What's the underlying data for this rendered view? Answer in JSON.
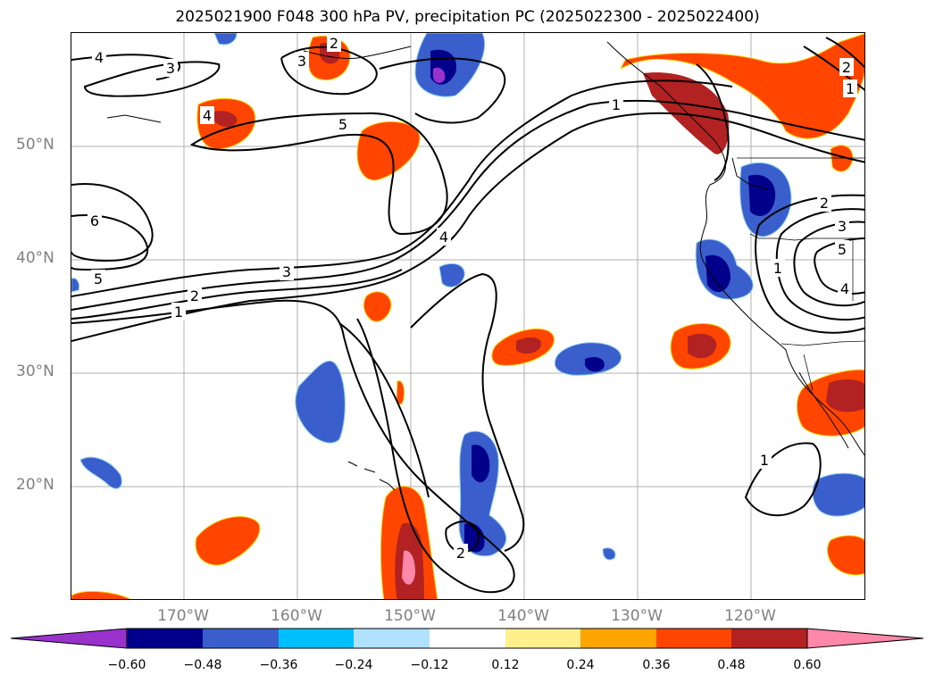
{
  "title": "2025021900 F048 300 hPa PV, precipitation PC (2025022300 - 2025022400)",
  "map": {
    "lat_labels": [
      "50°N",
      "40°N",
      "30°N",
      "20°N"
    ],
    "lon_labels": [
      "170°W",
      "160°W",
      "150°W",
      "140°W",
      "130°W",
      "120°W"
    ],
    "contour_labels": [
      "4",
      "3",
      "3",
      "2",
      "4",
      "5",
      "6",
      "5",
      "3",
      "2",
      "1",
      "4",
      "1",
      "2",
      "3",
      "5",
      "4",
      "1",
      "1",
      "2",
      "2",
      "1"
    ]
  },
  "colorbar": {
    "ticks": [
      "−0.60",
      "−0.48",
      "−0.36",
      "−0.24",
      "−0.12",
      "0.12",
      "0.24",
      "0.36",
      "0.48",
      "0.60"
    ],
    "colors": [
      "#9932cc",
      "#00008b",
      "#3a5fcd",
      "#00bfff",
      "#b0e2ff",
      "#ffffff",
      "#fff08c",
      "#ffa500",
      "#ff4500",
      "#b22222",
      "#ff88aa"
    ]
  },
  "colors": {
    "strong_positive": "#b22222",
    "positive": "#ff4500",
    "weak_positive": "#ffa500",
    "strong_negative": "#00008b",
    "negative": "#3a5fcd",
    "extreme_negative": "#9932cc",
    "extreme_positive": "#ff88aa",
    "gridline": "#b0b0b0"
  }
}
